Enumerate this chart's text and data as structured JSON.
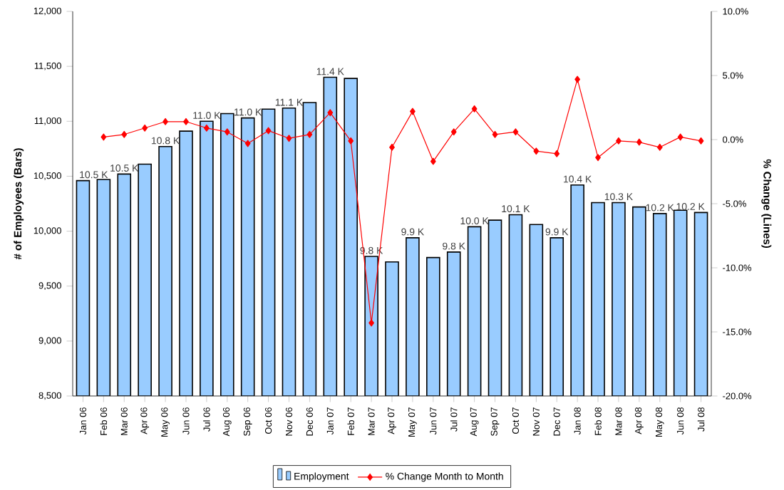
{
  "chart_data": {
    "type": "bar",
    "categories": [
      "Jan 06",
      "Feb 06",
      "Mar 06",
      "Apr 06",
      "May 06",
      "Jun 06",
      "Jul 06",
      "Aug 06",
      "Sep 06",
      "Oct 06",
      "Nov 06",
      "Dec 06",
      "Jan 07",
      "Feb 07",
      "Mar 07",
      "Apr 07",
      "May 07",
      "Jun 07",
      "Jul 07",
      "Aug 07",
      "Sep 07",
      "Oct 07",
      "Nov 07",
      "Dec 07",
      "Jan 08",
      "Feb 08",
      "Mar 08",
      "Apr 08",
      "May 08",
      "Jun 08",
      "Jul 08"
    ],
    "series": [
      {
        "name": "Employment",
        "color": "#99ccff",
        "values": [
          10460,
          10470,
          10520,
          10610,
          10770,
          10910,
          11000,
          11070,
          11030,
          11110,
          11120,
          11170,
          11400,
          11390,
          9770,
          9720,
          9940,
          9760,
          9810,
          10040,
          10100,
          10150,
          10060,
          9940,
          10420,
          10260,
          10260,
          10220,
          10160,
          10190,
          10170
        ],
        "value_labels": [
          "10.5 K",
          null,
          "10.5 K",
          null,
          "10.8 K",
          null,
          "11.0 K",
          null,
          "11.0 K",
          null,
          "11.1 K",
          null,
          "11.4 K",
          null,
          "9.8 K",
          null,
          "9.9 K",
          null,
          "9.8 K",
          "10.0 K",
          null,
          "10.1 K",
          null,
          "9.9 K",
          "10.4 K",
          null,
          "10.3 K",
          null,
          "10.2 K",
          null,
          "10.2 K"
        ]
      },
      {
        "name": "% Change Month to Month",
        "type": "line",
        "axis": "y2",
        "color": "#ff0000",
        "values": [
          null,
          0.2,
          0.4,
          0.9,
          1.4,
          1.4,
          0.9,
          0.6,
          -0.3,
          0.7,
          0.1,
          0.4,
          2.1,
          -0.1,
          -14.3,
          -0.6,
          2.2,
          -1.7,
          0.6,
          2.4,
          0.4,
          0.6,
          -0.9,
          -1.1,
          4.7,
          -1.4,
          -0.1,
          -0.2,
          -0.6,
          0.2,
          -0.1
        ]
      }
    ],
    "ylabel": "# of Employees (Bars)",
    "y2label": "% Change (Lines)",
    "ylim": [
      8500,
      12000
    ],
    "yticks": [
      {
        "value": 8500,
        "label": "8,500"
      },
      {
        "value": 9000,
        "label": "9,000"
      },
      {
        "value": 9500,
        "label": "9,500"
      },
      {
        "value": 10000,
        "label": "10,000"
      },
      {
        "value": 10500,
        "label": "10,500"
      },
      {
        "value": 11000,
        "label": "11,000"
      },
      {
        "value": 11500,
        "label": "11,500"
      },
      {
        "value": 12000,
        "label": "12,000"
      }
    ],
    "y2lim": [
      -20,
      10
    ],
    "y2ticks": [
      {
        "value": -20,
        "label": "-20.0%"
      },
      {
        "value": -15,
        "label": "-15.0%"
      },
      {
        "value": -10,
        "label": "-10.0%"
      },
      {
        "value": -5,
        "label": "-5.0%"
      },
      {
        "value": 0,
        "label": "0.0%"
      },
      {
        "value": 5,
        "label": "5.0%"
      },
      {
        "value": 10,
        "label": "10.0%"
      }
    ],
    "marker": "diamond",
    "line_style": "solid",
    "legend": "bottom"
  }
}
